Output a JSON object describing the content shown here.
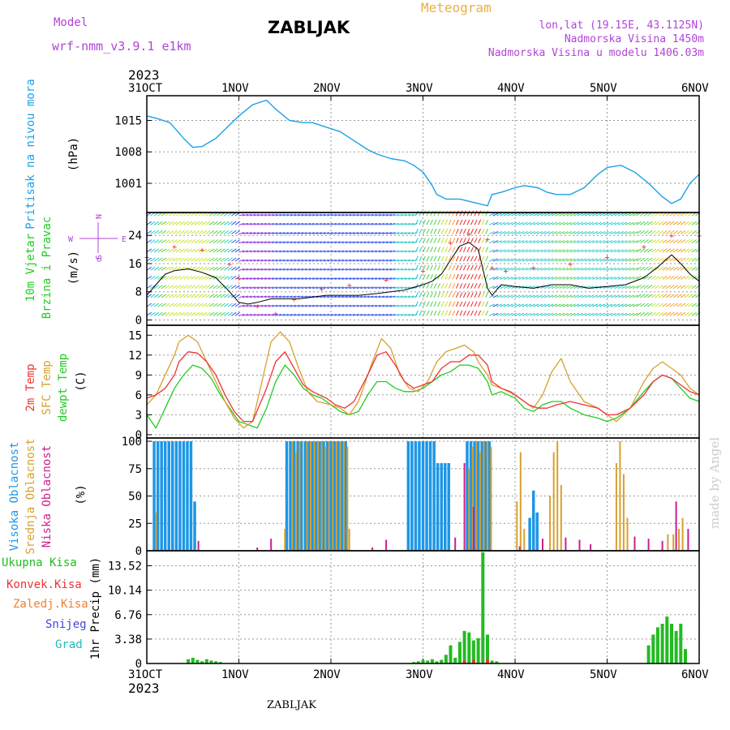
{
  "header": {
    "model_label": "Model",
    "model_name": "wrf-nmm_v3.9.1 e1km",
    "station": "ZABLJAK",
    "meteogram": "Meteogram",
    "lonlat": "lon,lat (19.15E, 43.1125N)",
    "elevation": "Nadmorska Visina 1450m",
    "model_elevation": "Nadmorska Visina u modelu 1406.03m"
  },
  "footer": {
    "station": "ZABLJAK",
    "credit": "made by Angel"
  },
  "colors": {
    "pressure": "#1ea0e6",
    "temp_2m": "#ee3333",
    "temp_sfc": "#d8a030",
    "dewpoint": "#22cc22",
    "cloud_high": "#1e96e6",
    "cloud_mid": "#d8a030",
    "cloud_low": "#cc1e8c",
    "precip": "#22bb22",
    "wind_line": "#000000",
    "purple": "#b044d8"
  },
  "chart_data": [
    {
      "type": "line",
      "panel": "pressure",
      "ylabel": "Pritisak na nivou mora",
      "unit": "(hPa)",
      "yticks": [
        1001,
        1008,
        1015
      ],
      "ylim": [
        994.5,
        1020.5
      ],
      "xlim": [
        0,
        6
      ],
      "xtick_labels": [
        "31OCT",
        "1NOV",
        "2NOV",
        "3NOV",
        "4NOV",
        "5NOV",
        "6NOV"
      ],
      "year_label": "2023",
      "grid": true,
      "series": [
        {
          "name": "pressure",
          "x": [
            0,
            0.1,
            0.25,
            0.4,
            0.5,
            0.6,
            0.75,
            0.9,
            1.0,
            1.15,
            1.3,
            1.4,
            1.55,
            1.7,
            1.8,
            1.95,
            2.1,
            2.25,
            2.4,
            2.5,
            2.65,
            2.8,
            2.9,
            3.0,
            3.1,
            3.15,
            3.25,
            3.4,
            3.5,
            3.6,
            3.7,
            3.75,
            3.85,
            4.0,
            4.1,
            4.25,
            4.35,
            4.45,
            4.6,
            4.75,
            4.9,
            5.0,
            5.15,
            5.3,
            5.45,
            5.6,
            5.7,
            5.8,
            5.9,
            6.0
          ],
          "y": [
            1016,
            1015.5,
            1014.5,
            1011,
            1009,
            1009.2,
            1011,
            1014,
            1016,
            1018.5,
            1019.5,
            1017.5,
            1015,
            1014.5,
            1014.5,
            1013.5,
            1012.5,
            1010.5,
            1008.5,
            1007.5,
            1006.5,
            1006,
            1005,
            1003.5,
            1000.5,
            998.5,
            997.5,
            997.5,
            997,
            996.5,
            996,
            998.5,
            999,
            1000,
            1000.5,
            1000,
            999,
            998.5,
            998.5,
            1000,
            1003,
            1004.5,
            1005,
            1003.5,
            1001,
            998,
            996.5,
            997.5,
            1001,
            1003
          ]
        }
      ]
    },
    {
      "type": "line",
      "panel": "wind",
      "ylabel_lines": [
        "10m Vjetar",
        "Brzina i Pravac"
      ],
      "unit": "(m/s)",
      "compass_labels": {
        "north": "N",
        "south": "S",
        "west": "W",
        "east": "E",
        "alpha": "α"
      },
      "yticks": [
        0,
        8,
        16,
        24
      ],
      "ylim": [
        -1.5,
        30.5
      ],
      "xlim": [
        0,
        6
      ],
      "grid": true,
      "series": [
        {
          "name": "wind_speed",
          "x": [
            0,
            0.1,
            0.2,
            0.3,
            0.45,
            0.6,
            0.75,
            0.9,
            1.0,
            1.1,
            1.2,
            1.35,
            1.5,
            1.65,
            1.8,
            1.95,
            2.1,
            2.3,
            2.5,
            2.65,
            2.8,
            3.0,
            3.1,
            3.2,
            3.3,
            3.4,
            3.5,
            3.6,
            3.7,
            3.75,
            3.85,
            4.0,
            4.2,
            4.4,
            4.6,
            4.8,
            5.0,
            5.2,
            5.4,
            5.55,
            5.7,
            5.8,
            5.9,
            6.0
          ],
          "y": [
            7,
            10,
            13,
            14,
            14.5,
            13.5,
            12,
            8,
            5,
            4.5,
            5,
            6,
            6,
            6,
            6.5,
            7,
            7,
            7,
            7.5,
            8,
            8.5,
            10,
            11,
            13,
            17,
            21,
            22,
            20,
            9,
            7,
            10,
            9.5,
            9,
            10,
            10,
            9,
            9.5,
            10,
            12,
            15,
            18.5,
            16,
            13,
            11
          ]
        },
        {
          "name": "wind_gust",
          "x": [
            0,
            0.3,
            0.6,
            0.9,
            1.0,
            1.2,
            1.4,
            1.6,
            1.9,
            2.2,
            2.6,
            3.0,
            3.3,
            3.5,
            3.7,
            3.75,
            3.9,
            4.2,
            4.6,
            5.0,
            5.4,
            5.7,
            6.0
          ],
          "y": [
            18,
            21,
            20,
            16,
            12,
            4,
            2,
            6,
            9,
            10,
            11.5,
            14,
            22,
            24.5,
            23,
            15,
            14,
            15,
            16,
            18,
            21,
            24,
            24
          ]
        }
      ]
    },
    {
      "type": "line",
      "panel": "temperature",
      "ylabel_lines": [
        "2m Temp",
        "SFC Temp",
        "dewpt Temp"
      ],
      "unit": "(C)",
      "yticks": [
        0,
        3,
        6,
        9,
        12,
        15
      ],
      "ylim": [
        -0.5,
        16.5
      ],
      "xlim": [
        0,
        6
      ],
      "grid": true,
      "series": [
        {
          "name": "2m Temp",
          "x": [
            0,
            0.1,
            0.2,
            0.3,
            0.35,
            0.45,
            0.55,
            0.65,
            0.75,
            0.85,
            0.95,
            1.05,
            1.15,
            1.3,
            1.4,
            1.5,
            1.6,
            1.7,
            1.8,
            1.95,
            2.05,
            2.15,
            2.25,
            2.4,
            2.5,
            2.6,
            2.7,
            2.8,
            2.9,
            3.0,
            3.1,
            3.2,
            3.3,
            3.4,
            3.5,
            3.6,
            3.7,
            3.75,
            3.85,
            3.95,
            4.05,
            4.15,
            4.25,
            4.35,
            4.45,
            4.6,
            4.75,
            4.9,
            5.0,
            5.1,
            5.25,
            5.4,
            5.5,
            5.6,
            5.7,
            5.8,
            5.9,
            6.0
          ],
          "y": [
            5.5,
            6,
            7,
            9,
            11,
            12.5,
            12.3,
            11,
            9,
            6,
            3.5,
            2,
            2,
            7,
            11,
            12.5,
            10,
            7.5,
            6.5,
            5.5,
            4.5,
            4,
            5,
            9,
            12,
            12.5,
            10.5,
            8,
            7,
            7.5,
            8,
            10,
            11,
            11,
            12,
            12,
            10.5,
            8,
            7,
            6.5,
            5.5,
            4.5,
            4,
            4,
            4.5,
            5,
            4.5,
            4,
            3,
            3,
            4,
            6,
            8,
            9,
            8.5,
            7.5,
            6.5,
            6
          ]
        },
        {
          "name": "SFC Temp",
          "x": [
            0,
            0.1,
            0.2,
            0.3,
            0.35,
            0.45,
            0.55,
            0.65,
            0.75,
            0.85,
            0.95,
            1.05,
            1.15,
            1.25,
            1.35,
            1.45,
            1.55,
            1.65,
            1.75,
            1.85,
            2.0,
            2.1,
            2.2,
            2.3,
            2.45,
            2.55,
            2.65,
            2.75,
            2.85,
            2.95,
            3.05,
            3.15,
            3.25,
            3.35,
            3.45,
            3.55,
            3.6,
            3.7,
            3.75,
            3.85,
            4.0,
            4.1,
            4.2,
            4.3,
            4.4,
            4.5,
            4.6,
            4.75,
            4.9,
            5.0,
            5.1,
            5.25,
            5.4,
            5.5,
            5.6,
            5.7,
            5.8,
            5.9,
            6.0
          ],
          "y": [
            4.5,
            6,
            9,
            12,
            14,
            15,
            14,
            11,
            8,
            5,
            2.5,
            1,
            2,
            8,
            14,
            15.5,
            14,
            10,
            6.5,
            5,
            4.5,
            4,
            3,
            5,
            11,
            14.5,
            13,
            9,
            7,
            6.5,
            8,
            11,
            12.5,
            13,
            13.5,
            12.5,
            11,
            9,
            7.5,
            7,
            6,
            5,
            4,
            6,
            9.5,
            11.5,
            8,
            5,
            4,
            3,
            2,
            4,
            8,
            10,
            11,
            10,
            9,
            7,
            6
          ]
        },
        {
          "name": "dewpt Temp",
          "x": [
            0,
            0.1,
            0.2,
            0.3,
            0.4,
            0.5,
            0.6,
            0.7,
            0.8,
            0.9,
            1.0,
            1.1,
            1.2,
            1.3,
            1.4,
            1.5,
            1.6,
            1.7,
            1.8,
            1.9,
            2.0,
            2.1,
            2.2,
            2.3,
            2.4,
            2.5,
            2.6,
            2.7,
            2.8,
            2.9,
            3.0,
            3.1,
            3.2,
            3.3,
            3.4,
            3.5,
            3.6,
            3.7,
            3.75,
            3.85,
            4.0,
            4.1,
            4.2,
            4.3,
            4.4,
            4.5,
            4.6,
            4.75,
            4.9,
            5.0,
            5.1,
            5.25,
            5.4,
            5.5,
            5.6,
            5.7,
            5.8,
            5.9,
            6.0
          ],
          "y": [
            3,
            1,
            4,
            7,
            9,
            10.5,
            10,
            8.5,
            6,
            4,
            2,
            1.5,
            1,
            4,
            8,
            10.5,
            9,
            7,
            6,
            5.5,
            4.5,
            3.5,
            3,
            3.5,
            6,
            8,
            8,
            7,
            6.5,
            6.5,
            7,
            8,
            9,
            9.5,
            10.5,
            10.5,
            10,
            8,
            6,
            6.5,
            5.5,
            4,
            3.5,
            4.5,
            5,
            5,
            4,
            3,
            2.5,
            2,
            2.5,
            4,
            6.5,
            8,
            9,
            8.5,
            7,
            5.5,
            5
          ]
        }
      ]
    },
    {
      "type": "bar",
      "panel": "cloud",
      "ylabel_lines": [
        "Visoka Oblacnost",
        "Srednja Oblacnost",
        "Niska Oblacnost"
      ],
      "unit": "(%)",
      "yticks": [
        0,
        25,
        50,
        75,
        100
      ],
      "ylim": [
        0,
        103
      ],
      "xlim": [
        0,
        6
      ],
      "grid": true,
      "series": [
        {
          "name": "Visoka Oblacnost",
          "x": [
            0.08,
            0.12,
            0.16,
            0.2,
            0.24,
            0.28,
            0.32,
            0.36,
            0.4,
            0.44,
            0.48,
            0.52,
            1.52,
            1.56,
            1.6,
            1.64,
            1.68,
            1.72,
            1.76,
            1.8,
            1.84,
            1.88,
            1.92,
            1.96,
            2.0,
            2.04,
            2.08,
            2.12,
            2.16,
            2.84,
            2.88,
            2.92,
            2.96,
            3.0,
            3.04,
            3.08,
            3.12,
            3.16,
            3.2,
            3.24,
            3.28,
            3.48,
            3.52,
            3.56,
            3.6,
            3.64,
            3.68,
            3.72,
            4.16,
            4.2,
            4.24
          ],
          "y": [
            100,
            100,
            100,
            100,
            100,
            100,
            100,
            100,
            100,
            100,
            100,
            45,
            100,
            100,
            100,
            100,
            100,
            100,
            100,
            100,
            100,
            100,
            100,
            100,
            100,
            100,
            100,
            100,
            100,
            100,
            100,
            100,
            100,
            100,
            100,
            100,
            100,
            80,
            80,
            80,
            80,
            100,
            100,
            100,
            100,
            100,
            100,
            100,
            30,
            55,
            35
          ]
        },
        {
          "name": "Srednja Oblacnost",
          "x": [
            0.1,
            1.5,
            1.58,
            1.62,
            1.66,
            1.74,
            1.78,
            1.82,
            1.86,
            1.9,
            1.94,
            1.98,
            2.02,
            2.06,
            2.1,
            2.14,
            2.18,
            2.2,
            3.5,
            3.54,
            3.58,
            3.62,
            3.66,
            3.7,
            3.74,
            4.02,
            4.06,
            4.1,
            4.38,
            4.42,
            4.46,
            4.5,
            5.1,
            5.14,
            5.18,
            5.22,
            5.66,
            5.72,
            5.78,
            5.82
          ],
          "y": [
            35,
            20,
            100,
            90,
            100,
            100,
            100,
            100,
            100,
            100,
            95,
            100,
            100,
            100,
            100,
            100,
            95,
            20,
            75,
            95,
            100,
            90,
            100,
            100,
            95,
            45,
            90,
            20,
            50,
            90,
            100,
            60,
            80,
            100,
            70,
            30,
            15,
            15,
            20,
            30
          ]
        },
        {
          "name": "Niska Oblacnost",
          "x": [
            0.56,
            1.2,
            1.35,
            2.45,
            2.6,
            3.35,
            3.45,
            3.55,
            4.05,
            4.3,
            4.55,
            4.7,
            4.82,
            5.3,
            5.45,
            5.6,
            5.75,
            5.88
          ],
          "y": [
            9,
            3,
            11,
            3,
            10,
            12,
            80,
            40,
            4,
            11,
            12,
            10,
            6,
            13,
            11,
            9,
            45,
            20
          ]
        }
      ]
    },
    {
      "type": "bar",
      "panel": "precip",
      "ylabel_lines": [
        "Ukupna Kisa",
        "Konvek.Kisa",
        "Zaledj.Kisa",
        "Snijeg",
        "Grad"
      ],
      "unit": "1hr Precip (mm)",
      "yticks": [
        0,
        3.38,
        6.76,
        10.14,
        13.52
      ],
      "ylim": [
        0,
        15.6
      ],
      "xlim": [
        0,
        6
      ],
      "grid": true,
      "xtick_labels": [
        "31OCT",
        "1NOV",
        "2NOV",
        "3NOV",
        "4NOV",
        "5NOV",
        "6NOV"
      ],
      "year_label": "2023",
      "series": [
        {
          "name": "Ukupna Kisa",
          "x": [
            0.45,
            0.5,
            0.55,
            0.6,
            0.65,
            0.7,
            0.75,
            0.8,
            2.9,
            2.95,
            3.0,
            3.05,
            3.1,
            3.15,
            3.2,
            3.25,
            3.3,
            3.35,
            3.4,
            3.45,
            3.5,
            3.55,
            3.6,
            3.65,
            3.7,
            3.75,
            3.8,
            5.45,
            5.5,
            5.55,
            5.6,
            5.65,
            5.7,
            5.75,
            5.8,
            5.85
          ],
          "y": [
            0.6,
            0.8,
            0.5,
            0.3,
            0.6,
            0.4,
            0.3,
            0.2,
            0.2,
            0.3,
            0.5,
            0.4,
            0.6,
            0.3,
            0.5,
            1.2,
            2.5,
            0.8,
            3.0,
            4.5,
            4.3,
            3.2,
            3.5,
            15.4,
            4.0,
            0.4,
            0.3,
            2.5,
            4.0,
            5.0,
            5.5,
            6.5,
            5.5,
            4.5,
            5.5,
            2.0
          ]
        },
        {
          "name": "Konvek.Kisa",
          "x": [
            3.45,
            3.55,
            3.7
          ],
          "y": [
            0.4,
            0.5,
            0.6
          ]
        }
      ]
    }
  ]
}
